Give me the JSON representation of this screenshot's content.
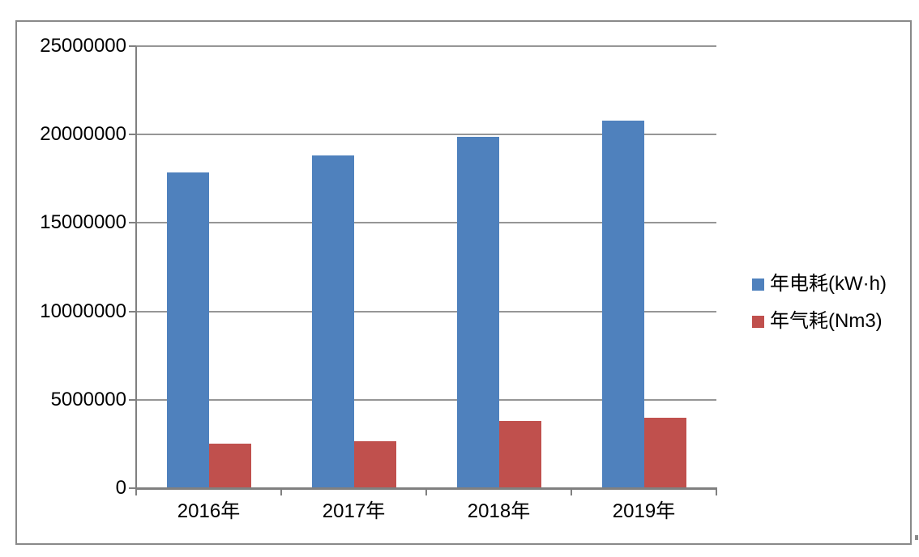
{
  "chart_data": {
    "type": "bar",
    "title": "",
    "categories": [
      "2016年",
      "2017年",
      "2018年",
      "2019年"
    ],
    "series": [
      {
        "name": "年电耗(kW·h)",
        "color": "#4F81BD",
        "values": [
          17850000,
          18800000,
          19850000,
          20800000
        ]
      },
      {
        "name": "年气耗(Nm3)",
        "color": "#C0504D",
        "values": [
          2500000,
          2650000,
          3800000,
          4000000
        ]
      }
    ],
    "ylim": [
      0,
      25000000
    ],
    "yticks": [
      0,
      5000000,
      10000000,
      15000000,
      20000000,
      25000000
    ],
    "ytick_labels": [
      "0",
      "5000000",
      "10000000",
      "15000000",
      "20000000",
      "25000000"
    ],
    "xlabel": "",
    "ylabel": "",
    "grid": "horizontal",
    "legend_position": "right"
  },
  "colors": {
    "grid_line": "#969696",
    "axis_line": "#808080",
    "frame_border": "#898989",
    "background": "#FFFFFF",
    "series_blue": "#4F81BD",
    "series_red": "#C0504D"
  }
}
